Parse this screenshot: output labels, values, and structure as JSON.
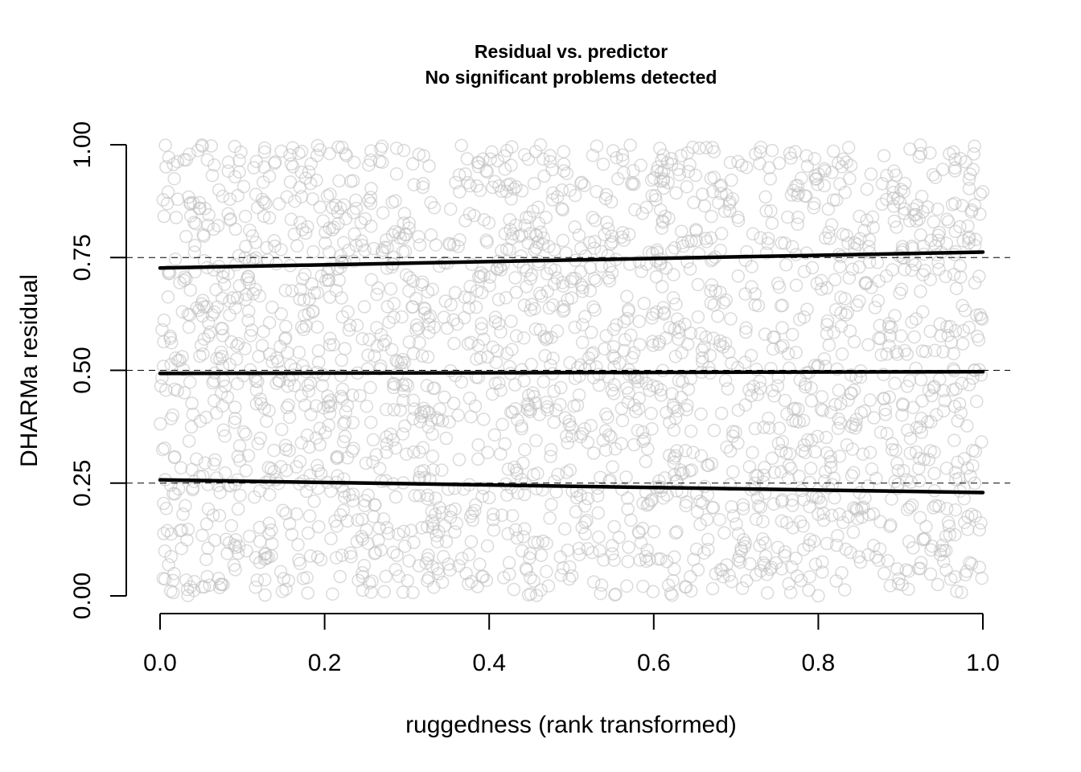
{
  "chart_data": {
    "type": "scatter",
    "title": "Residual vs. predictor",
    "subtitle": "No significant problems detected",
    "xlabel": "ruggedness (rank transformed)",
    "ylabel": "DHARMa residual",
    "xlim": [
      0,
      1
    ],
    "ylim": [
      0,
      1
    ],
    "x_ticks": [
      "0.0",
      "0.2",
      "0.4",
      "0.6",
      "0.8",
      "1.0"
    ],
    "y_ticks": [
      "0.00",
      "0.25",
      "0.50",
      "0.75",
      "1.00"
    ],
    "reference_lines": [
      0.25,
      0.5,
      0.75
    ],
    "grid": false,
    "point_style": "open-circle",
    "point_color": "#bdbdbd",
    "line_color": "#000000",
    "point_count": 2400,
    "point_distribution": "uniform over [0,1] x [0,1]",
    "quantile_lines": [
      {
        "quantile": 0.25,
        "x": [
          0,
          1
        ],
        "y": [
          0.257,
          0.229
        ]
      },
      {
        "quantile": 0.5,
        "x": [
          0,
          1
        ],
        "y": [
          0.493,
          0.497
        ]
      },
      {
        "quantile": 0.75,
        "x": [
          0,
          1
        ],
        "y": [
          0.727,
          0.762
        ]
      }
    ]
  }
}
